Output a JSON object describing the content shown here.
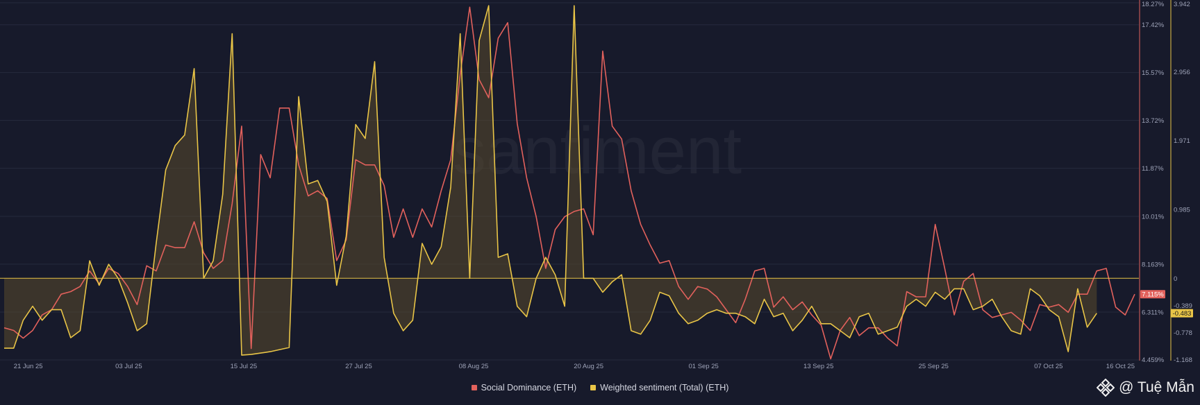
{
  "chart_data": {
    "type": "line",
    "watermark": "santiment",
    "x_ticks": [
      "21 Jun 25",
      "03 Jul 25",
      "15 Jul 25",
      "27 Jul 25",
      "08 Aug 25",
      "20 Aug 25",
      "01 Sep 25",
      "13 Sep 25",
      "25 Sep 25",
      "07 Oct 25",
      "16 Oct 25"
    ],
    "x_range": [
      "2025-06-20",
      "2025-10-16"
    ],
    "y_right_outer": {
      "ticks": [
        "3.942",
        "2.956",
        "1.971",
        "0.985",
        "0",
        "-0.389",
        "-0.778",
        "-1.168"
      ],
      "range": [
        -1.168,
        3.942
      ]
    },
    "y_right_inner": {
      "ticks": [
        "18.27%",
        "17.42%",
        "15.57%",
        "13.72%",
        "11.87%",
        "10.01%",
        "8.163%",
        "6.311%",
        "4.459%"
      ],
      "range": [
        4.459,
        18.27
      ],
      "unit": "%"
    },
    "series": [
      {
        "name": "Social Dominance (ETH)",
        "color": "#e2615c",
        "axis": "inner",
        "current_value_label": "7.115%",
        "values": [
          5.7,
          5.6,
          5.3,
          5.6,
          6.2,
          6.4,
          7.0,
          7.1,
          7.3,
          7.9,
          7.4,
          8.0,
          7.8,
          7.3,
          6.6,
          8.1,
          7.9,
          8.9,
          8.8,
          8.8,
          9.8,
          8.6,
          8.0,
          8.3,
          10.5,
          13.5,
          4.9,
          12.4,
          11.5,
          14.2,
          14.2,
          12.0,
          10.8,
          11.0,
          10.7,
          8.3,
          9.1,
          12.2,
          12.0,
          12.0,
          11.2,
          9.2,
          10.3,
          9.2,
          10.3,
          9.6,
          11.0,
          12.2,
          15.5,
          18.1,
          15.3,
          14.6,
          16.9,
          17.5,
          13.6,
          11.5,
          10.0,
          8.0,
          9.5,
          10.0,
          10.2,
          10.3,
          9.3,
          16.4,
          13.5,
          13.0,
          11.0,
          9.7,
          8.9,
          8.2,
          8.3,
          7.3,
          6.8,
          7.3,
          7.2,
          6.9,
          6.4,
          5.9,
          6.8,
          7.9,
          8.0,
          6.5,
          6.9,
          6.4,
          6.7,
          6.2,
          5.8,
          4.5,
          5.6,
          6.1,
          5.4,
          5.7,
          5.7,
          5.3,
          5.0,
          7.1,
          6.9,
          6.9,
          9.7,
          8.0,
          6.2,
          7.5,
          7.8,
          6.4,
          6.1,
          6.2,
          6.3,
          6.0,
          5.6,
          6.6,
          6.5,
          6.6,
          6.3,
          7.0,
          7.0,
          7.9,
          8.0,
          6.5,
          6.2,
          7.0
        ]
      },
      {
        "name": "Weighted sentiment (Total) (ETH)",
        "color": "#e9c547",
        "axis": "outer",
        "current_value_label": "-0.483",
        "values": [
          -1.0,
          -1.0,
          -0.6,
          -0.4,
          -0.6,
          -0.45,
          -0.45,
          -0.85,
          -0.75,
          0.25,
          -0.1,
          0.2,
          0.0,
          -0.35,
          -0.75,
          -0.65,
          0.5,
          1.55,
          1.9,
          2.05,
          3.0,
          0.0,
          0.25,
          1.2,
          3.5,
          -1.1,
          -1.09,
          -1.07,
          -1.05,
          -1.02,
          -0.99,
          2.6,
          1.35,
          1.4,
          1.1,
          -0.1,
          0.6,
          2.2,
          2.0,
          3.1,
          0.3,
          -0.5,
          -0.75,
          -0.6,
          0.5,
          0.2,
          0.45,
          1.3,
          3.5,
          0.0,
          3.4,
          3.9,
          0.3,
          0.35,
          -0.4,
          -0.55,
          0.0,
          0.3,
          0.05,
          -0.4,
          3.9,
          0.0,
          0.0,
          -0.2,
          -0.05,
          0.05,
          -0.75,
          -0.8,
          -0.6,
          -0.2,
          -0.25,
          -0.5,
          -0.65,
          -0.6,
          -0.5,
          -0.45,
          -0.5,
          -0.5,
          -0.55,
          -0.65,
          -0.3,
          -0.55,
          -0.5,
          -0.75,
          -0.6,
          -0.4,
          -0.65,
          -0.65,
          -0.75,
          -0.85,
          -0.55,
          -0.5,
          -0.8,
          -0.75,
          -0.7,
          -0.4,
          -0.3,
          -0.4,
          -0.2,
          -0.3,
          -0.15,
          -0.15,
          -0.45,
          -0.4,
          -0.3,
          -0.55,
          -0.75,
          -0.8,
          -0.15,
          -0.25,
          -0.45,
          -0.55,
          -1.05,
          -0.15,
          -0.7,
          -0.5
        ]
      }
    ]
  },
  "legend": {
    "social_dominance": "Social Dominance (ETH)",
    "weighted_sentiment": "Weighted sentiment (Total) (ETH)"
  },
  "brand": {
    "text": "@ Tuệ Mẫn"
  }
}
